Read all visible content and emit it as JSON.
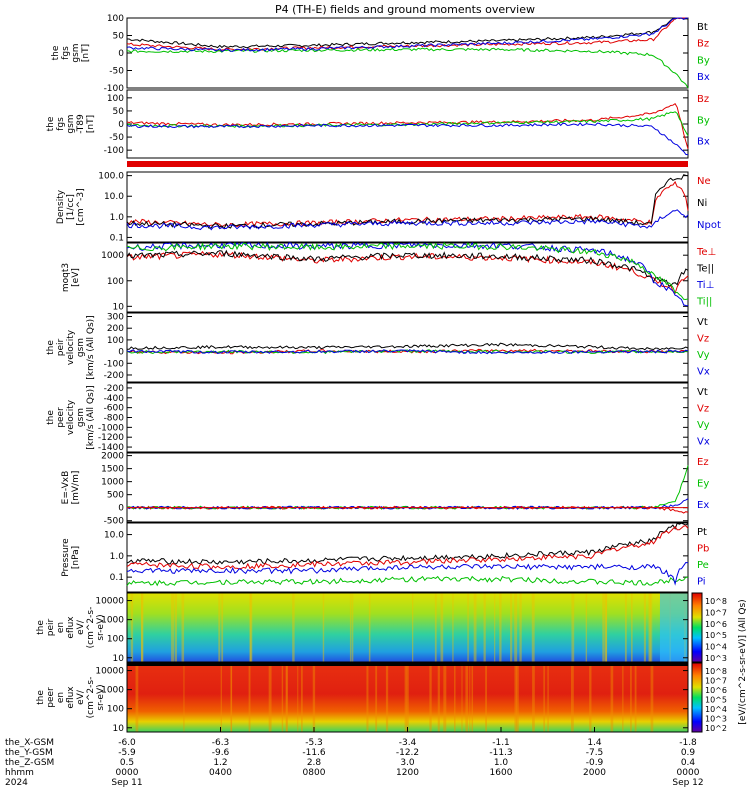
{
  "title": "P4 (TH-E) fields and ground moments overview",
  "colors": {
    "black": "#000000",
    "red": "#e00000",
    "green": "#00c000",
    "blue": "#0000e0"
  },
  "panels": [
    {
      "id": "fgs-gsm",
      "ylabel": [
        "the",
        "fgs",
        "gsm",
        "[nT]"
      ],
      "ticks": [
        "100",
        "50",
        "0",
        "-50",
        "-100"
      ],
      "tickvals": [
        100,
        50,
        0,
        -50,
        -100
      ],
      "yrange": [
        -100,
        100
      ],
      "scale": "linear",
      "legend": [
        {
          "text": "Bt",
          "color": "black"
        },
        {
          "text": "Bz",
          "color": "red"
        },
        {
          "text": "By",
          "color": "green"
        },
        {
          "text": "Bx",
          "color": "blue"
        }
      ]
    },
    {
      "id": "fgs-gsm-dc",
      "ylabel": [
        "the",
        "fgs",
        "gsm",
        "-T89",
        "[nT]"
      ],
      "ticks": [
        "100",
        "50",
        "0",
        "-50",
        "-100"
      ],
      "tickvals": [
        100,
        50,
        0,
        -50,
        -100
      ],
      "yrange": [
        -130,
        130
      ],
      "scale": "linear",
      "legend": [
        {
          "text": "Bz",
          "color": "red"
        },
        {
          "text": "By",
          "color": "green"
        },
        {
          "text": "Bx",
          "color": "blue"
        }
      ]
    },
    {
      "id": "density",
      "ylabel": [
        "Density",
        "[1/cc]",
        "[cm^-3]"
      ],
      "ticks": [
        "100.0",
        "10.0",
        "1.0",
        "0.1"
      ],
      "tickvals": [
        100,
        10,
        1,
        0.1
      ],
      "yrange": [
        0.06,
        150
      ],
      "scale": "log",
      "legend": [
        {
          "text": "Ne",
          "color": "red"
        },
        {
          "text": "Ni",
          "color": "black"
        },
        {
          "text": "Npot",
          "color": "blue"
        }
      ]
    },
    {
      "id": "temperature",
      "ylabel": [
        "moqt3",
        "[eV]"
      ],
      "ticks": [
        "1000",
        "100",
        "10"
      ],
      "tickvals": [
        1000,
        100,
        10
      ],
      "yrange": [
        6,
        3000
      ],
      "scale": "log",
      "legend": [
        {
          "text": "Te⊥",
          "color": "red"
        },
        {
          "text": "Te||",
          "color": "black"
        },
        {
          "text": "Ti⊥",
          "color": "blue"
        },
        {
          "text": "Ti||",
          "color": "green"
        }
      ]
    },
    {
      "id": "peir-velocity",
      "ylabel": [
        "the",
        "peir",
        "velocity",
        "gsm",
        "[km/s (All Qs)]"
      ],
      "ticks": [
        "300",
        "200",
        "100",
        "0",
        "-100",
        "-200"
      ],
      "tickvals": [
        300,
        200,
        100,
        0,
        -100,
        -200
      ],
      "yrange": [
        -260,
        330
      ],
      "scale": "linear",
      "legend": [
        {
          "text": "Vt",
          "color": "black"
        },
        {
          "text": "Vz",
          "color": "red"
        },
        {
          "text": "Vy",
          "color": "green"
        },
        {
          "text": "Vx",
          "color": "blue"
        }
      ]
    },
    {
      "id": "peer-velocity",
      "ylabel": [
        "the",
        "peer",
        "velocity",
        "gsm",
        "[km/s (All Qs)]"
      ],
      "ticks": [
        "-200",
        "-400",
        "-600",
        "-800",
        "-1000",
        "-1200",
        "-1400"
      ],
      "tickvals": [
        -200,
        -400,
        -600,
        -800,
        -1000,
        -1200,
        -1400
      ],
      "yrange": [
        -1500,
        -100
      ],
      "scale": "linear",
      "legend": [
        {
          "text": "Vt",
          "color": "black"
        },
        {
          "text": "Vz",
          "color": "red"
        },
        {
          "text": "Vy",
          "color": "green"
        },
        {
          "text": "Vx",
          "color": "blue"
        }
      ]
    },
    {
      "id": "efield",
      "ylabel": [
        "E=-VxB",
        "[mV/m]"
      ],
      "ticks": [
        "2000",
        "1500",
        "1000",
        "500",
        "0",
        "-500"
      ],
      "tickvals": [
        2000,
        1500,
        1000,
        500,
        0,
        -500
      ],
      "yrange": [
        -550,
        2100
      ],
      "scale": "linear",
      "legend": [
        {
          "text": "Ez",
          "color": "red"
        },
        {
          "text": "Ey",
          "color": "green"
        },
        {
          "text": "Ex",
          "color": "blue"
        }
      ]
    },
    {
      "id": "pressure",
      "ylabel": [
        "Pressure",
        "[nPa]"
      ],
      "ticks": [
        "10.0",
        "1.0",
        "0.1"
      ],
      "tickvals": [
        10,
        1,
        0.1
      ],
      "yrange": [
        0.02,
        35
      ],
      "scale": "log",
      "legend": [
        {
          "text": "Pt",
          "color": "black"
        },
        {
          "text": "Pb",
          "color": "red"
        },
        {
          "text": "Pe",
          "color": "green"
        },
        {
          "text": "Pi",
          "color": "blue"
        }
      ]
    },
    {
      "id": "peir-eflux",
      "ylabel": [
        "the",
        "peir",
        "en",
        "eflux",
        "eV/",
        "(cm^2-s-",
        "sr-eV)"
      ],
      "ticks": [
        "10000",
        "1000",
        "100",
        "10"
      ],
      "tickvals": [
        10000,
        1000,
        100,
        10
      ],
      "yrange": [
        6,
        25000
      ],
      "scale": "log",
      "legend": []
    },
    {
      "id": "peer-eflux",
      "ylabel": [
        "the",
        "peer",
        "en",
        "eflux",
        "eV/",
        "(cm^2-s-",
        "sr-eV)"
      ],
      "ticks": [
        "10000",
        "1000",
        "100",
        "10"
      ],
      "tickvals": [
        10000,
        1000,
        100,
        10
      ],
      "yrange": [
        6,
        25000
      ],
      "scale": "log",
      "legend": []
    }
  ],
  "colorbar": {
    "ion_ticks": [
      "10^8",
      "10^7",
      "10^6",
      "10^5",
      "10^4",
      "10^3"
    ],
    "electron_ticks": [
      "10^8",
      "10^7",
      "10^6",
      "10^5",
      "10^4",
      "10^3",
      "10^2"
    ],
    "label": "[eV/(cm^2-s-sr-eV)] (All Qs)"
  },
  "xaxis": {
    "rows": [
      {
        "label": "the_X-GSM",
        "values": [
          "-6.0",
          "-6.3",
          "-5.3",
          "-3.4",
          "-1.1",
          "1.4",
          "-1.8"
        ]
      },
      {
        "label": "the_Y-GSM",
        "values": [
          "-5.9",
          "-9.6",
          "-11.6",
          "-12.2",
          "-11.3",
          "-7.5",
          "0.9"
        ]
      },
      {
        "label": "the_Z-GSM",
        "values": [
          "0.5",
          "1.2",
          "2.8",
          "3.0",
          "1.0",
          "-0.9",
          "0.4"
        ]
      },
      {
        "label": "hhmm",
        "values": [
          "0000",
          "0400",
          "0800",
          "1200",
          "1600",
          "2000",
          "0000"
        ]
      },
      {
        "label": "2024",
        "values": [
          "Sep 11",
          "",
          "",
          "",
          "",
          "",
          "Sep 12"
        ]
      }
    ]
  },
  "chart_data": [
    {
      "type": "line",
      "title": "P4 (TH-E) fields and ground moments overview",
      "ylabel": "the fgs gsm [nT]",
      "ylim": [
        -100,
        100
      ],
      "x_hours": [
        0,
        4,
        8,
        12,
        16,
        20,
        22.5,
        23.5,
        24
      ],
      "series": [
        {
          "name": "Bt",
          "values": [
            40,
            18,
            22,
            30,
            35,
            45,
            60,
            100,
            100
          ]
        },
        {
          "name": "Bz",
          "values": [
            25,
            10,
            15,
            20,
            25,
            30,
            38,
            100,
            100
          ]
        },
        {
          "name": "By",
          "values": [
            5,
            5,
            8,
            10,
            10,
            5,
            -5,
            -60,
            -100
          ]
        },
        {
          "name": "Bx",
          "values": [
            15,
            8,
            12,
            20,
            28,
            40,
            55,
            100,
            100
          ]
        }
      ]
    },
    {
      "type": "line",
      "ylabel": "the fgs gsm -T89 [nT]",
      "x_hours": [
        0,
        4,
        8,
        12,
        16,
        20,
        22.5,
        23.5,
        24
      ],
      "series": [
        {
          "name": "Bz",
          "values": [
            5,
            -3,
            0,
            5,
            8,
            15,
            40,
            80,
            -100
          ]
        },
        {
          "name": "By",
          "values": [
            -5,
            -8,
            -5,
            -2,
            5,
            10,
            20,
            50,
            -50
          ]
        },
        {
          "name": "Bx",
          "values": [
            -8,
            -10,
            -6,
            -5,
            -5,
            0,
            -10,
            -80,
            -120
          ]
        }
      ]
    },
    {
      "type": "line",
      "ylabel": "Density [1/cc]",
      "scale": "log",
      "x_hours": [
        0,
        4,
        8,
        12,
        16,
        20,
        22.5,
        23.5,
        24
      ],
      "series": [
        {
          "name": "Ne",
          "values": [
            0.6,
            0.4,
            0.5,
            0.7,
            0.8,
            1.0,
            0.5,
            40,
            2
          ]
        },
        {
          "name": "Ni",
          "values": [
            0.5,
            0.35,
            0.45,
            0.6,
            0.7,
            0.8,
            0.4,
            80,
            100
          ]
        },
        {
          "name": "Npot",
          "values": [
            0.4,
            0.3,
            0.4,
            0.5,
            0.5,
            0.6,
            0.3,
            2,
            1
          ]
        }
      ]
    },
    {
      "type": "line",
      "ylabel": "moqt3 [eV]",
      "scale": "log",
      "x_hours": [
        0,
        4,
        8,
        12,
        16,
        20,
        22.5,
        23.5,
        24
      ],
      "series": [
        {
          "name": "Te⊥",
          "values": [
            800,
            1100,
            600,
            900,
            800,
            500,
            100,
            40,
            200
          ]
        },
        {
          "name": "Te||",
          "values": [
            900,
            1200,
            700,
            1000,
            900,
            600,
            120,
            60,
            300
          ]
        },
        {
          "name": "Ti⊥",
          "values": [
            2000,
            2500,
            2200,
            2500,
            2400,
            1500,
            100,
            20,
            10
          ]
        },
        {
          "name": "Ti||",
          "values": [
            1800,
            2300,
            2000,
            2300,
            2200,
            1300,
            150,
            30,
            20
          ]
        }
      ]
    },
    {
      "type": "line",
      "ylabel": "the peir velocity gsm [km/s (All Qs)]",
      "x_hours": [
        0,
        4,
        8,
        12,
        16,
        20,
        22.5,
        23.5,
        24
      ],
      "series": [
        {
          "name": "Vt",
          "values": [
            30,
            40,
            35,
            45,
            60,
            40,
            20,
            30,
            40
          ]
        },
        {
          "name": "Vz",
          "values": [
            0,
            -10,
            5,
            0,
            10,
            5,
            0,
            0,
            0
          ]
        },
        {
          "name": "Vy",
          "values": [
            -5,
            0,
            -5,
            5,
            0,
            -5,
            0,
            0,
            0
          ]
        },
        {
          "name": "Vx",
          "values": [
            5,
            -5,
            0,
            5,
            -10,
            0,
            0,
            0,
            0
          ]
        }
      ]
    },
    {
      "type": "line",
      "ylabel": "the peer velocity gsm [km/s (All Qs)]",
      "series": []
    },
    {
      "type": "line",
      "ylabel": "E=-VxB [mV/m]",
      "x_hours": [
        0,
        4,
        8,
        12,
        16,
        20,
        22.5,
        23.5,
        24
      ],
      "series": [
        {
          "name": "Ez",
          "values": [
            0,
            0,
            0,
            0,
            0,
            0,
            0,
            -100,
            -200
          ]
        },
        {
          "name": "Ey",
          "values": [
            0,
            0,
            0,
            0,
            0,
            0,
            0,
            300,
            1600
          ]
        },
        {
          "name": "Ex",
          "values": [
            0,
            0,
            0,
            0,
            0,
            0,
            0,
            100,
            300
          ]
        }
      ]
    },
    {
      "type": "line",
      "ylabel": "Pressure [nPa]",
      "scale": "log",
      "x_hours": [
        0,
        4,
        8,
        12,
        16,
        20,
        22.5,
        23.5,
        24
      ],
      "series": [
        {
          "name": "Pt",
          "values": [
            0.6,
            0.5,
            0.6,
            0.8,
            1.0,
            1.5,
            5,
            25,
            30
          ]
        },
        {
          "name": "Pb",
          "values": [
            0.4,
            0.3,
            0.4,
            0.5,
            0.7,
            1.0,
            4,
            20,
            25
          ]
        },
        {
          "name": "Pe",
          "values": [
            0.05,
            0.06,
            0.06,
            0.08,
            0.08,
            0.06,
            0.05,
            0.08,
            0.1
          ]
        },
        {
          "name": "Pi",
          "values": [
            0.2,
            0.2,
            0.2,
            0.3,
            0.3,
            0.3,
            0.3,
            0.05,
            0.6
          ]
        }
      ]
    },
    {
      "type": "heatmap",
      "ylabel": "the peir en eflux eV/(cm^2-s-sr-eV)",
      "ylim": [
        10,
        10000
      ],
      "scale": "log"
    },
    {
      "type": "heatmap",
      "ylabel": "the peer en eflux eV/(cm^2-s-sr-eV)",
      "ylim": [
        10,
        10000
      ],
      "scale": "log"
    }
  ]
}
